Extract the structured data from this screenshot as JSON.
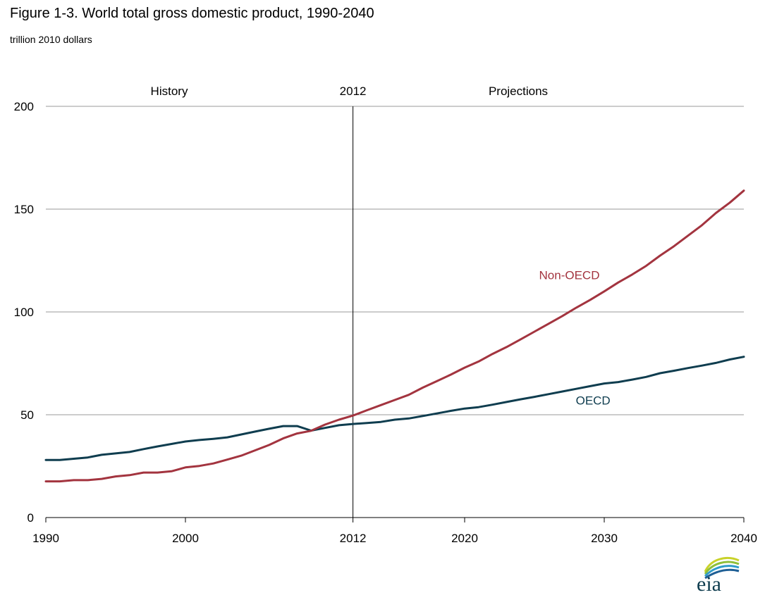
{
  "figure": {
    "title": "Figure 1-3. World total gross domestic product, 1990-2040",
    "subtitle": "trillion 2010 dollars",
    "logo_text": "eia"
  },
  "chart_data": {
    "type": "line",
    "title": "Figure 1-3. World total gross domestic product, 1990-2040",
    "subtitle": "trillion 2010 dollars",
    "xlim": [
      1990,
      2040
    ],
    "ylim": [
      0,
      200
    ],
    "x_ticks": [
      1990,
      2000,
      2012,
      2020,
      2030,
      2040
    ],
    "y_ticks": [
      0,
      50,
      100,
      150,
      200
    ],
    "grid": "horizontal",
    "divider": {
      "x": 2012,
      "label": "2012"
    },
    "region_labels": {
      "history": "History",
      "projections": "Projections"
    },
    "series": [
      {
        "name": "OECD",
        "color": "#0f3d4f",
        "x": [
          1990,
          1991,
          1992,
          1993,
          1994,
          1995,
          1996,
          1997,
          1998,
          1999,
          2000,
          2001,
          2002,
          2003,
          2004,
          2005,
          2006,
          2007,
          2008,
          2009,
          2010,
          2011,
          2012,
          2013,
          2014,
          2015,
          2016,
          2017,
          2018,
          2019,
          2020,
          2021,
          2022,
          2023,
          2024,
          2025,
          2026,
          2027,
          2028,
          2029,
          2030,
          2031,
          2032,
          2033,
          2034,
          2035,
          2036,
          2037,
          2038,
          2039,
          2040
        ],
        "values": [
          28,
          28,
          28.6,
          29.2,
          30.5,
          31.2,
          31.9,
          33.3,
          34.6,
          35.8,
          37,
          37.7,
          38.3,
          39,
          40.4,
          41.8,
          43.2,
          44.5,
          44.5,
          42.3,
          43.6,
          44.9,
          45.5,
          46,
          46.5,
          47.6,
          48.2,
          49.4,
          50.6,
          51.9,
          53,
          53.7,
          54.9,
          56.2,
          57.5,
          58.7,
          60,
          61.3,
          62.6,
          63.9,
          65.2,
          65.9,
          67.1,
          68.4,
          70.2,
          71.4,
          72.7,
          73.9,
          75.2,
          76.9,
          78.2
        ]
      },
      {
        "name": "Non-OECD",
        "color": "#a3343f",
        "x": [
          1990,
          1991,
          1992,
          1993,
          1994,
          1995,
          1996,
          1997,
          1998,
          1999,
          2000,
          2001,
          2002,
          2003,
          2004,
          2005,
          2006,
          2007,
          2008,
          2009,
          2010,
          2011,
          2012,
          2013,
          2014,
          2015,
          2016,
          2017,
          2018,
          2019,
          2020,
          2021,
          2022,
          2023,
          2024,
          2025,
          2026,
          2027,
          2028,
          2029,
          2030,
          2031,
          2032,
          2033,
          2034,
          2035,
          2036,
          2037,
          2038,
          2039,
          2040
        ],
        "values": [
          17.6,
          17.6,
          18.2,
          18.2,
          18.8,
          20,
          20.6,
          21.9,
          21.9,
          22.5,
          24.4,
          25.1,
          26.3,
          28.2,
          30.1,
          32.7,
          35.3,
          38.5,
          40.9,
          42.2,
          45.2,
          47.6,
          49.6,
          52.2,
          54.7,
          57.2,
          59.7,
          63.2,
          66.3,
          69.5,
          72.9,
          75.9,
          79.6,
          82.9,
          86.6,
          90.4,
          94.2,
          98,
          102.1,
          105.9,
          110,
          114.3,
          118.2,
          122.4,
          127.4,
          132,
          137.1,
          142.2,
          148.1,
          153.2,
          159
        ]
      }
    ],
    "annotations": [
      {
        "text": "Non-OECD",
        "x": 2027.5,
        "y": 116,
        "color": "#a3343f"
      },
      {
        "text": "OECD",
        "x": 2029.2,
        "y": 55,
        "color": "#0f3d4f"
      }
    ]
  }
}
